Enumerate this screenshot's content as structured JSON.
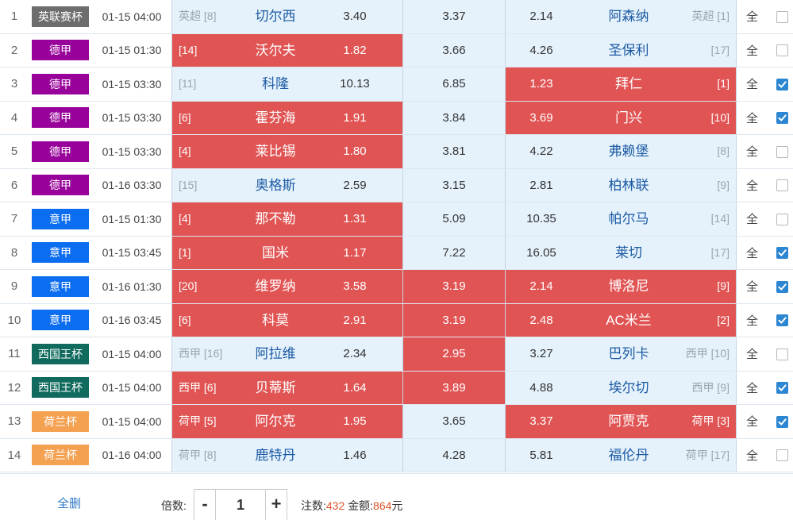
{
  "check_mark_color": "#2d86d1",
  "selected_color": "#e15454",
  "unselected_color": "#e5f2fc",
  "matches": [
    {
      "num": "1",
      "league": "英联赛杯",
      "league_color": "#6d6d6d",
      "time": "01-15 04:00",
      "home_rank": "英超 [8]",
      "home": "切尔西",
      "win": "3.40",
      "draw": "3.37",
      "loss": "2.14",
      "away": "阿森纳",
      "away_rank": "英超 [1]",
      "sel": [
        false,
        false,
        false
      ],
      "all": "全",
      "checked": false
    },
    {
      "num": "2",
      "league": "德甲",
      "league_color": "#98029a",
      "time": "01-15 01:30",
      "home_rank": "[14]",
      "home": "沃尔夫",
      "win": "1.82",
      "draw": "3.66",
      "loss": "4.26",
      "away": "圣保利",
      "away_rank": "[17]",
      "sel": [
        true,
        false,
        false
      ],
      "all": "全",
      "checked": false
    },
    {
      "num": "3",
      "league": "德甲",
      "league_color": "#98029a",
      "time": "01-15 03:30",
      "home_rank": "[11]",
      "home": "科隆",
      "win": "10.13",
      "draw": "6.85",
      "loss": "1.23",
      "away": "拜仁",
      "away_rank": "[1]",
      "sel": [
        false,
        false,
        true
      ],
      "all": "全",
      "checked": true
    },
    {
      "num": "4",
      "league": "德甲",
      "league_color": "#98029a",
      "time": "01-15 03:30",
      "home_rank": "[6]",
      "home": "霍芬海",
      "win": "1.91",
      "draw": "3.84",
      "loss": "3.69",
      "away": "门兴",
      "away_rank": "[10]",
      "sel": [
        true,
        false,
        true
      ],
      "all": "全",
      "checked": true
    },
    {
      "num": "5",
      "league": "德甲",
      "league_color": "#98029a",
      "time": "01-15 03:30",
      "home_rank": "[4]",
      "home": "莱比锡",
      "win": "1.80",
      "draw": "3.81",
      "loss": "4.22",
      "away": "弗赖堡",
      "away_rank": "[8]",
      "sel": [
        true,
        false,
        false
      ],
      "all": "全",
      "checked": false
    },
    {
      "num": "6",
      "league": "德甲",
      "league_color": "#98029a",
      "time": "01-16 03:30",
      "home_rank": "[15]",
      "home": "奥格斯",
      "win": "2.59",
      "draw": "3.15",
      "loss": "2.81",
      "away": "柏林联",
      "away_rank": "[9]",
      "sel": [
        false,
        false,
        false
      ],
      "all": "全",
      "checked": false
    },
    {
      "num": "7",
      "league": "意甲",
      "league_color": "#0b6df0",
      "time": "01-15 01:30",
      "home_rank": "[4]",
      "home": "那不勒",
      "win": "1.31",
      "draw": "5.09",
      "loss": "10.35",
      "away": "帕尔马",
      "away_rank": "[14]",
      "sel": [
        true,
        false,
        false
      ],
      "all": "全",
      "checked": false
    },
    {
      "num": "8",
      "league": "意甲",
      "league_color": "#0b6df0",
      "time": "01-15 03:45",
      "home_rank": "[1]",
      "home": "国米",
      "win": "1.17",
      "draw": "7.22",
      "loss": "16.05",
      "away": "莱切",
      "away_rank": "[17]",
      "sel": [
        true,
        false,
        false
      ],
      "all": "全",
      "checked": true
    },
    {
      "num": "9",
      "league": "意甲",
      "league_color": "#0b6df0",
      "time": "01-16 01:30",
      "home_rank": "[20]",
      "home": "维罗纳",
      "win": "3.58",
      "draw": "3.19",
      "loss": "2.14",
      "away": "博洛尼",
      "away_rank": "[9]",
      "sel": [
        true,
        true,
        true
      ],
      "all": "全",
      "checked": true
    },
    {
      "num": "10",
      "league": "意甲",
      "league_color": "#0b6df0",
      "time": "01-16 03:45",
      "home_rank": "[6]",
      "home": "科莫",
      "win": "2.91",
      "draw": "3.19",
      "loss": "2.48",
      "away": "AC米兰",
      "away_rank": "[2]",
      "sel": [
        true,
        true,
        true
      ],
      "all": "全",
      "checked": true
    },
    {
      "num": "11",
      "league": "西国王杯",
      "league_color": "#106b5e",
      "time": "01-15 04:00",
      "home_rank": "西甲 [16]",
      "home": "阿拉维",
      "win": "2.34",
      "draw": "2.95",
      "loss": "3.27",
      "away": "巴列卡",
      "away_rank": "西甲 [10]",
      "sel": [
        false,
        true,
        false
      ],
      "all": "全",
      "checked": false
    },
    {
      "num": "12",
      "league": "西国王杯",
      "league_color": "#106b5e",
      "time": "01-15 04:00",
      "home_rank": "西甲 [6]",
      "home": "贝蒂斯",
      "win": "1.64",
      "draw": "3.89",
      "loss": "4.88",
      "away": "埃尔切",
      "away_rank": "西甲 [9]",
      "sel": [
        true,
        true,
        false
      ],
      "all": "全",
      "checked": true
    },
    {
      "num": "13",
      "league": "荷兰杯",
      "league_color": "#f5a152",
      "time": "01-15 04:00",
      "home_rank": "荷甲 [5]",
      "home": "阿尔克",
      "win": "1.95",
      "draw": "3.65",
      "loss": "3.37",
      "away": "阿贾克",
      "away_rank": "荷甲 [3]",
      "sel": [
        true,
        false,
        true
      ],
      "all": "全",
      "checked": true
    },
    {
      "num": "14",
      "league": "荷兰杯",
      "league_color": "#f5a152",
      "time": "01-16 04:00",
      "home_rank": "荷甲 [8]",
      "home": "鹿特丹",
      "win": "1.46",
      "draw": "4.28",
      "loss": "5.81",
      "away": "福伦丹",
      "away_rank": "荷甲 [17]",
      "sel": [
        false,
        false,
        false
      ],
      "all": "全",
      "checked": false
    }
  ],
  "footer": {
    "delete_all": "全删",
    "multiplier_label": "倍数:",
    "minus": "-",
    "multiplier_value": "1",
    "plus": "+",
    "bets_label": "注数:",
    "bets_value": "432",
    "amount_label": "金额:",
    "amount_value": "864",
    "amount_unit": "元"
  }
}
